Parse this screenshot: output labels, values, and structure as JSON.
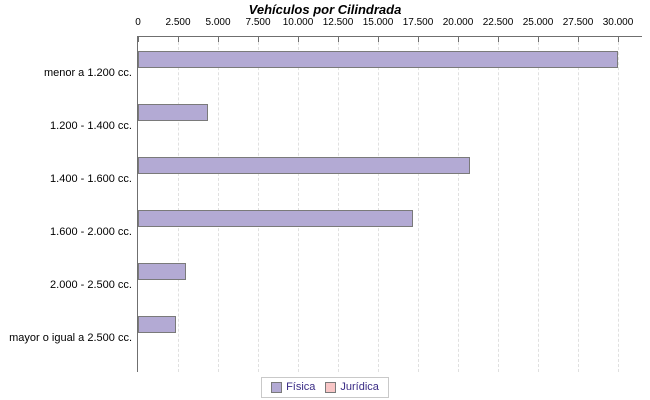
{
  "chart_data": {
    "type": "bar",
    "orientation": "horizontal",
    "title": "Vehículos por Cilindrada",
    "categories": [
      "menor a 1.200 cc.",
      "1.200 - 1.400 cc.",
      "1.400 - 1.600 cc.",
      "1.600 - 2.000 cc.",
      "2.000 - 2.500 cc.",
      "mayor o igual a 2.500 cc."
    ],
    "series": [
      {
        "name": "Física",
        "color": "#b3aad4",
        "values": [
          30000,
          4400,
          20750,
          17200,
          3000,
          2400
        ]
      },
      {
        "name": "Jurídica",
        "color": "#f8c6c6",
        "values": [
          0,
          0,
          0,
          0,
          0,
          0
        ]
      }
    ],
    "xlim": [
      0,
      30000
    ],
    "x_ticks": [
      {
        "value": 0,
        "label": "0"
      },
      {
        "value": 2500,
        "label": "2.500"
      },
      {
        "value": 5000,
        "label": "5.000"
      },
      {
        "value": 7500,
        "label": "7.500"
      },
      {
        "value": 10000,
        "label": "10.000"
      },
      {
        "value": 12500,
        "label": "12.500"
      },
      {
        "value": 15000,
        "label": "15.000"
      },
      {
        "value": 17500,
        "label": "17.500"
      },
      {
        "value": 20000,
        "label": "20.000"
      },
      {
        "value": 22500,
        "label": "22.500"
      },
      {
        "value": 25000,
        "label": "25.000"
      },
      {
        "value": 27500,
        "label": "27.500"
      },
      {
        "value": 30000,
        "label": "30.000"
      }
    ],
    "grid": "vertical-dashed",
    "legend_position": "bottom-center"
  },
  "colors": {
    "background": "#ffffff",
    "axis_line": "#6f6f6f",
    "gridline": "#e0e0e0",
    "bar_border": "#7a7a7a",
    "legend_border": "#c9c9c9",
    "legend_text": "#3a2c86",
    "title_text": "#000000",
    "fisica": "#b3aad4",
    "juridica": "#f8c6c6"
  }
}
